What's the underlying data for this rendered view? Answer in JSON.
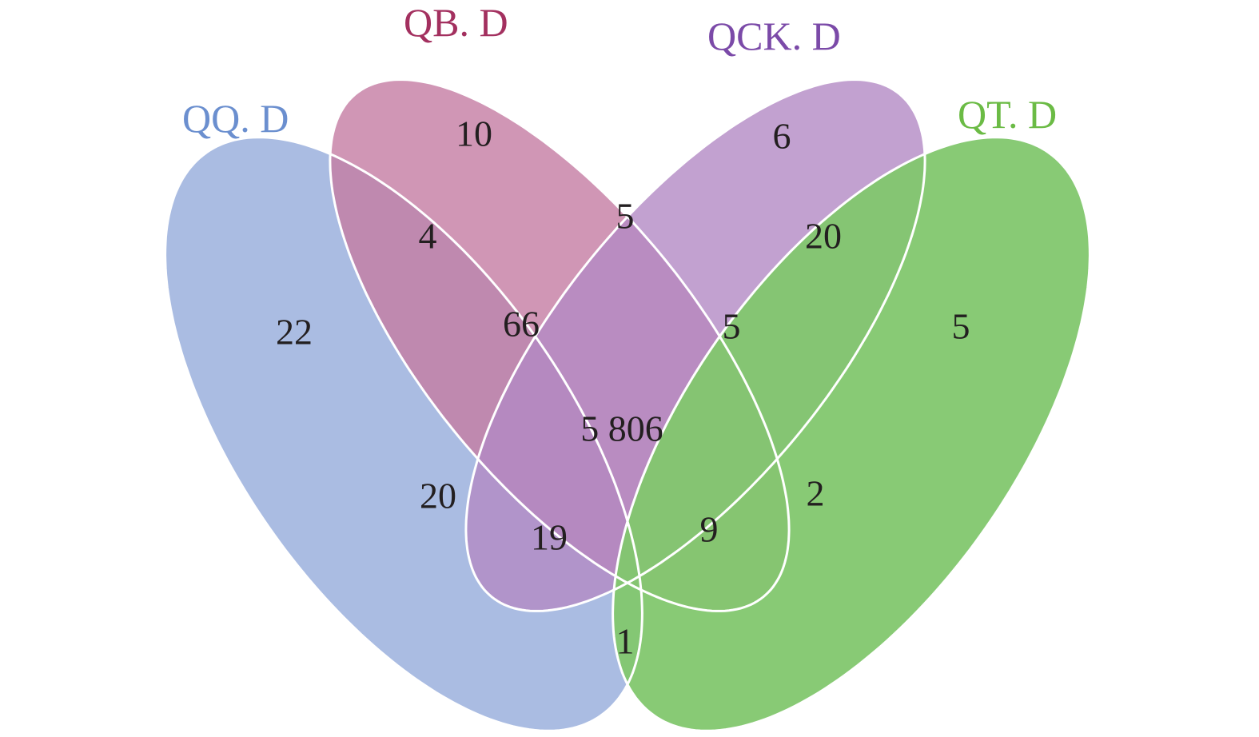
{
  "chart_data": {
    "type": "venn",
    "sets": [
      {
        "name": "QQ. D",
        "color": "#a5b8e0",
        "label_color": "#6b8fcf"
      },
      {
        "name": "QB. D",
        "color": "#c47ca3",
        "label_color": "#a3305f"
      },
      {
        "name": "QCK. D",
        "color": "#b38ac4",
        "label_color": "#7b4aa8"
      },
      {
        "name": "QT. D",
        "color": "#82c76e",
        "label_color": "#6bbb45"
      }
    ],
    "regions": [
      {
        "sets": [
          "QQ. D"
        ],
        "value": "22"
      },
      {
        "sets": [
          "QB. D"
        ],
        "value": "10"
      },
      {
        "sets": [
          "QCK. D"
        ],
        "value": "6"
      },
      {
        "sets": [
          "QT. D"
        ],
        "value": "5"
      },
      {
        "sets": [
          "QQ. D",
          "QB. D"
        ],
        "value": "4"
      },
      {
        "sets": [
          "QB. D",
          "QCK. D"
        ],
        "value": "5"
      },
      {
        "sets": [
          "QCK. D",
          "QT. D"
        ],
        "value": "20"
      },
      {
        "sets": [
          "QQ. D",
          "QCK. D"
        ],
        "value": "20"
      },
      {
        "sets": [
          "QB. D",
          "QT. D"
        ],
        "value": "2"
      },
      {
        "sets": [
          "QQ. D",
          "QT. D"
        ],
        "value": "1"
      },
      {
        "sets": [
          "QQ. D",
          "QB. D",
          "QCK. D"
        ],
        "value": "66"
      },
      {
        "sets": [
          "QB. D",
          "QCK. D",
          "QT. D"
        ],
        "value": "5"
      },
      {
        "sets": [
          "QQ. D",
          "QCK. D",
          "QT. D"
        ],
        "value": "19"
      },
      {
        "sets": [
          "QQ. D",
          "QB. D",
          "QT. D"
        ],
        "value": "9"
      },
      {
        "sets": [
          "QQ. D",
          "QB. D",
          "QCK. D",
          "QT. D"
        ],
        "value": "5 806"
      }
    ]
  }
}
